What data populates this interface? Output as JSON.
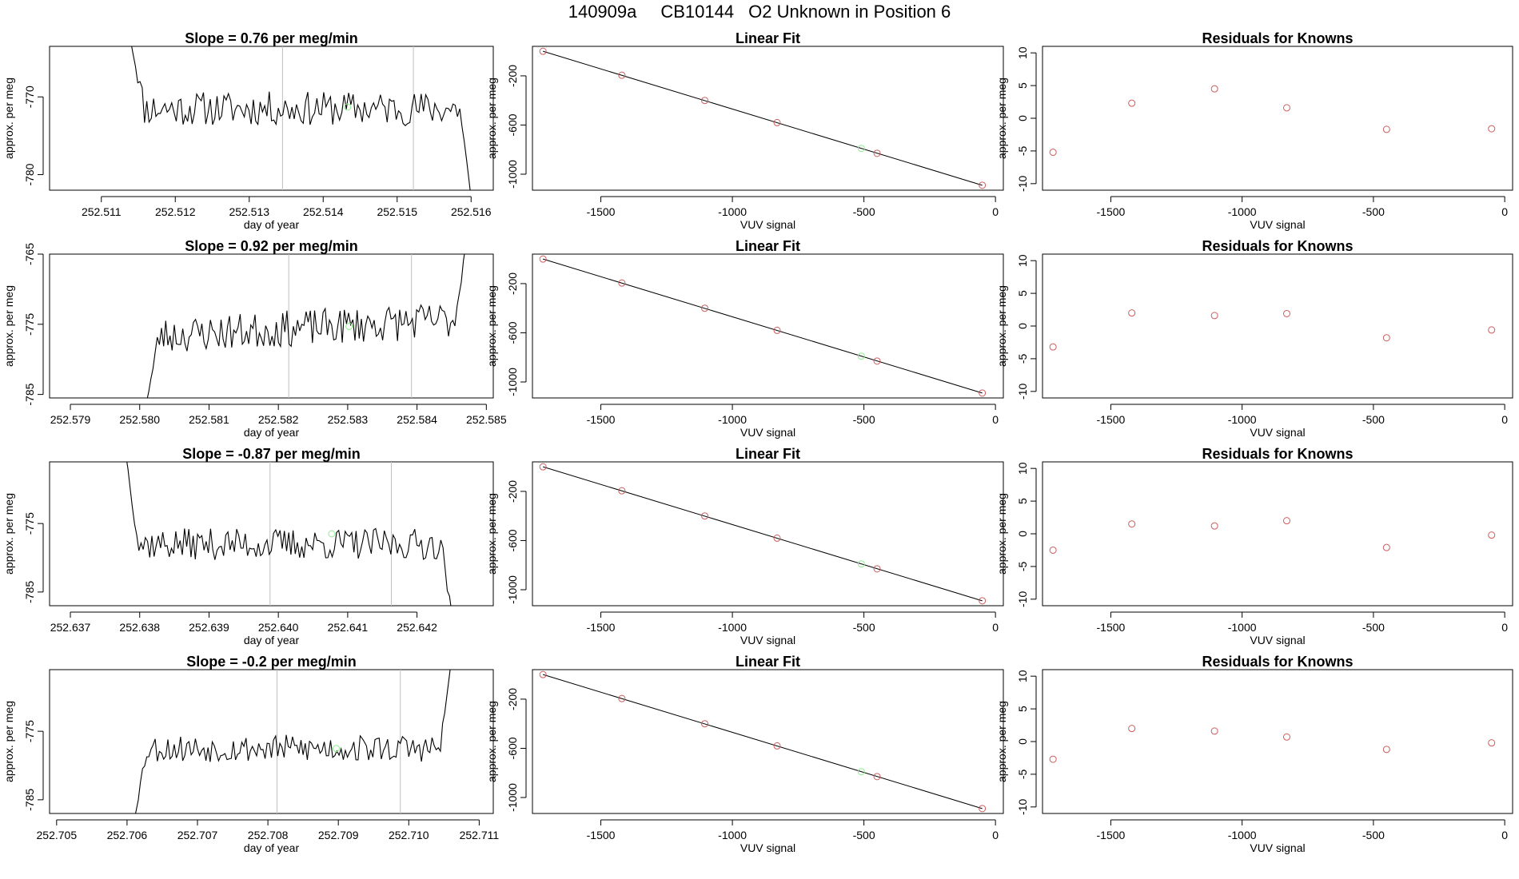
{
  "page": {
    "title_parts": [
      "140909a",
      "CB10144",
      "O2 Unknown in Position  6"
    ]
  },
  "colors": {
    "trace": "#000000",
    "vline": "#bebebe",
    "known_point": "#cd5c5c",
    "unknown_point": "#90ee90"
  },
  "chart_data": [
    {
      "type": "line",
      "panel": "time-series",
      "row": 0,
      "title": "Slope =  0.76  per meg/min",
      "xlabel": "day of year",
      "ylabel": "approx. per meg",
      "xlim": [
        252.5103,
        252.5163
      ],
      "ylim": [
        -782,
        -763.5
      ],
      "xticks": [
        252.511,
        252.512,
        252.513,
        252.514,
        252.515,
        252.516
      ],
      "xtick_labels": [
        "252.511",
        "252.512",
        "252.513",
        "252.514",
        "252.515",
        "252.516"
      ],
      "yticks": [
        -770,
        -780
      ],
      "ytick_labels": [
        "-770",
        "-780"
      ],
      "vlines": [
        252.51345,
        252.51522
      ],
      "trace_x_range": [
        252.5114,
        252.516
      ],
      "trace_base": -771.5,
      "trace_amp": 2.2,
      "trace_seed": 11,
      "trace_start_y": -763,
      "trace_end_y": -783,
      "unknown_point": {
        "x": 252.51433,
        "y": -771.3
      }
    },
    {
      "type": "line",
      "panel": "time-series",
      "row": 1,
      "title": "Slope =  0.92  per meg/min",
      "xlabel": "day of year",
      "ylabel": "approx. per meg",
      "xlim": [
        252.5787,
        252.5851
      ],
      "ylim": [
        -785.5,
        -765
      ],
      "xticks": [
        252.579,
        252.58,
        252.581,
        252.582,
        252.583,
        252.584,
        252.585
      ],
      "xtick_labels": [
        "252.579",
        "252.580",
        "252.581",
        "252.582",
        "252.583",
        "252.584",
        "252.585"
      ],
      "yticks": [
        -765,
        -775,
        -785
      ],
      "ytick_labels": [
        "-765",
        "-775",
        "-785"
      ],
      "vlines": [
        252.58215,
        252.58392
      ],
      "trace_x_range": [
        252.5801,
        252.5847
      ],
      "trace_base": -775.5,
      "trace_amp": 2.6,
      "trace_seed": 23,
      "trace_start_y": -786,
      "trace_end_y": -764,
      "trace_trend": 2.5,
      "unknown_point": {
        "x": 252.58302,
        "y": -775.3
      }
    },
    {
      "type": "line",
      "panel": "time-series",
      "row": 2,
      "title": "Slope =  -0.87  per meg/min",
      "xlabel": "day of year",
      "ylabel": "approx. per meg",
      "xlim": [
        252.6367,
        252.6431
      ],
      "ylim": [
        -787,
        -766
      ],
      "xticks": [
        252.637,
        252.638,
        252.639,
        252.64,
        252.641,
        252.642
      ],
      "xtick_labels": [
        "252.637",
        "252.638",
        "252.639",
        "252.640",
        "252.641",
        "252.642"
      ],
      "yticks": [
        -775,
        -785
      ],
      "ytick_labels": [
        "-775",
        "-785"
      ],
      "vlines": [
        252.63988,
        252.64163
      ],
      "trace_x_range": [
        252.6378,
        252.6425
      ],
      "trace_base": -778,
      "trace_amp": 2.3,
      "trace_seed": 37,
      "trace_start_y": -765,
      "trace_end_y": -788,
      "unknown_point": {
        "x": 252.64077,
        "y": -776.5
      }
    },
    {
      "type": "line",
      "panel": "time-series",
      "row": 3,
      "title": "Slope =  -0.2  per meg/min",
      "xlabel": "day of year",
      "ylabel": "approx. per meg",
      "xlim": [
        252.7049,
        252.7112
      ],
      "ylim": [
        -787,
        -766
      ],
      "xticks": [
        252.705,
        252.706,
        252.707,
        252.708,
        252.709,
        252.71,
        252.711
      ],
      "xtick_labels": [
        "252.705",
        "252.706",
        "252.707",
        "252.708",
        "252.709",
        "252.710",
        "252.711"
      ],
      "yticks": [
        -775,
        -785
      ],
      "ytick_labels": [
        "-775",
        "-785"
      ],
      "vlines": [
        252.70813,
        252.70988
      ],
      "trace_x_range": [
        252.7061,
        252.7106
      ],
      "trace_base": -777.5,
      "trace_amp": 2.0,
      "trace_seed": 53,
      "trace_start_y": -788,
      "trace_end_y": -765,
      "unknown_point": {
        "x": 252.70897,
        "y": -777.5
      }
    },
    {
      "type": "scatter",
      "panel": "linear-fit",
      "title": "Linear Fit",
      "xlabel": "VUV signal",
      "ylabel": "approx. per meg",
      "xlim": [
        -1760,
        30
      ],
      "ylim": [
        -1130,
        40
      ],
      "xticks": [
        -1500,
        -1000,
        -500,
        0
      ],
      "xtick_labels": [
        "-1500",
        "-1000",
        "-500",
        "0"
      ],
      "yticks": [
        -200,
        -600,
        -1000
      ],
      "ytick_labels": [
        "-200",
        "-600",
        "-1000"
      ],
      "fit_line": [
        [
          -1720,
          0
        ],
        [
          -50,
          -1090
        ]
      ],
      "knowns": [
        [
          -1720,
          0
        ],
        [
          -1420,
          -195
        ],
        [
          -1105,
          -400
        ],
        [
          -830,
          -580
        ],
        [
          -450,
          -830
        ],
        [
          -50,
          -1090
        ]
      ],
      "unknown": [
        -510,
        -790
      ]
    },
    {
      "type": "scatter",
      "panel": "residuals",
      "title": "Residuals for Knowns",
      "xlabel": "VUV signal",
      "ylabel": "approx. per meg",
      "xlim": [
        -1760,
        30
      ],
      "ylim": [
        -11,
        11
      ],
      "xticks": [
        -1500,
        -1000,
        -500,
        0
      ],
      "xtick_labels": [
        "-1500",
        "-1000",
        "-500",
        "0"
      ],
      "yticks": [
        10,
        5,
        0,
        -5,
        -10
      ],
      "ytick_labels": [
        "10",
        "5",
        "0",
        "-5",
        "-10"
      ],
      "x": [
        -1720,
        -1420,
        -1105,
        -830,
        -450,
        -50
      ],
      "rows": [
        [
          -5.2,
          2.3,
          4.5,
          1.6,
          -1.7,
          -1.6
        ],
        [
          -3.2,
          2.0,
          1.6,
          1.9,
          -1.8,
          -0.6
        ],
        [
          -2.5,
          1.5,
          1.2,
          2.0,
          -2.1,
          -0.2
        ],
        [
          -2.7,
          2.0,
          1.6,
          0.7,
          -1.2,
          -0.2
        ]
      ]
    }
  ]
}
